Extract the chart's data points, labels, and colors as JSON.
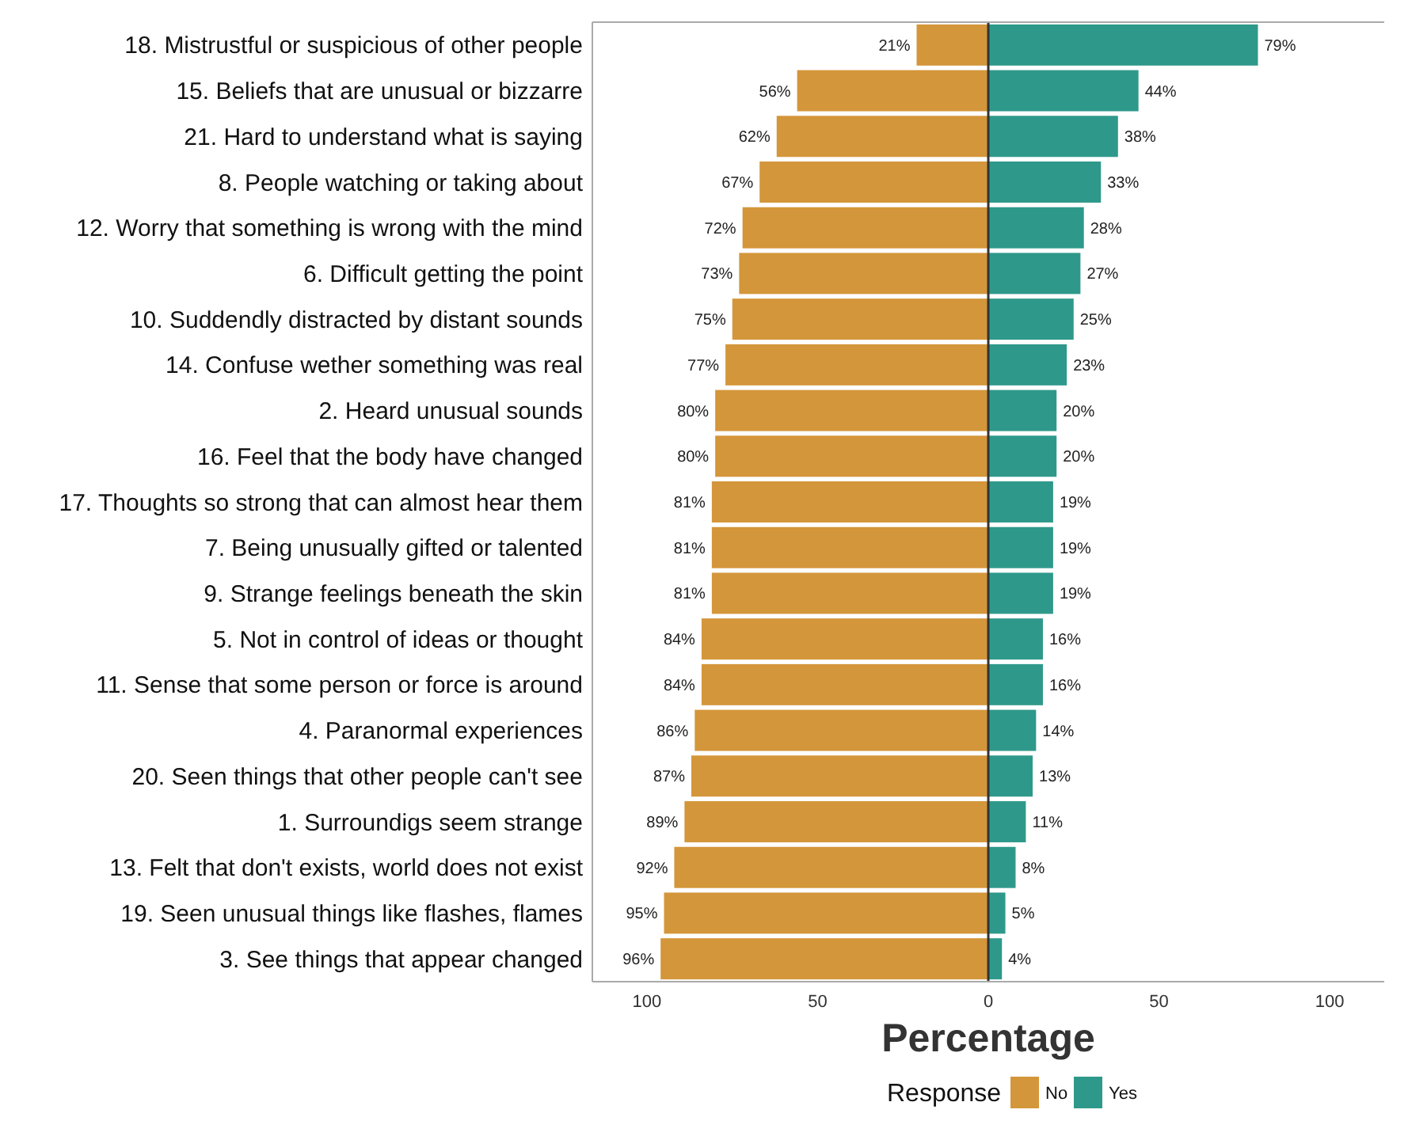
{
  "chart_data": {
    "type": "bar",
    "orientation": "horizontal",
    "categories": [
      "18. Mistrustful or suspicious of other people",
      "15. Beliefs that are unusual or bizzarre",
      "21. Hard to understand what is saying",
      "8. People watching or taking about",
      "12. Worry that something is wrong with the mind",
      "6. Difficult getting the point",
      "10. Suddendly distracted by distant sounds",
      "14. Confuse wether something was real",
      "2. Heard unusual sounds",
      "16. Feel that the body have changed",
      "17. Thoughts so strong that can almost hear them",
      "7. Being unusually gifted or talented",
      "9. Strange feelings beneath the skin",
      "5. Not in control of ideas or thought",
      "11. Sense that some person or force is around",
      "4. Paranormal experiences",
      "20. Seen things that other people can't see",
      "1. Surroundigs seem strange",
      "13. Felt that don't exists, world does not exist",
      "19. Seen unusual things like flashes, flames",
      "3. See things that appear changed"
    ],
    "series": [
      {
        "name": "No",
        "color": "#d4963a",
        "values": [
          21,
          56,
          62,
          67,
          72,
          73,
          75,
          77,
          80,
          80,
          81,
          81,
          81,
          84,
          84,
          86,
          87,
          89,
          92,
          95,
          96
        ],
        "base": [
          -21,
          -56,
          -62,
          -67,
          -72,
          -73,
          -75,
          -77,
          -80,
          -80,
          -81,
          -81,
          -81,
          -84,
          -84,
          -86,
          -87,
          -89,
          -92,
          -95,
          -96
        ],
        "value_labels": [
          "21%",
          "56%",
          "62%",
          "67%",
          "72%",
          "73%",
          "75%",
          "77%",
          "80%",
          "80%",
          "81%",
          "81%",
          "81%",
          "84%",
          "84%",
          "86%",
          "87%",
          "89%",
          "92%",
          "95%",
          "96%"
        ]
      },
      {
        "name": "Yes",
        "color": "#2e998a",
        "values": [
          79,
          44,
          38,
          33,
          28,
          27,
          25,
          23,
          20,
          20,
          19,
          19,
          19,
          16,
          16,
          14,
          13,
          11,
          8,
          5,
          4
        ],
        "value_labels": [
          "79%",
          "44%",
          "38%",
          "33%",
          "28%",
          "27%",
          "25%",
          "23%",
          "20%",
          "20%",
          "19%",
          "19%",
          "19%",
          "16%",
          "16%",
          "14%",
          "13%",
          "11%",
          "8%",
          "5%",
          "4%"
        ]
      }
    ],
    "xlim": [
      -116,
      116
    ],
    "xticks": [
      {
        "value": -100,
        "label": "100"
      },
      {
        "value": -50,
        "label": "50"
      },
      0,
      50,
      100
    ],
    "xlabel": "Percentage",
    "ref_lines": [
      {
        "axis": "x",
        "value": 0,
        "color": "#333333"
      }
    ],
    "legend": "bottom",
    "legend_title": "Response"
  }
}
